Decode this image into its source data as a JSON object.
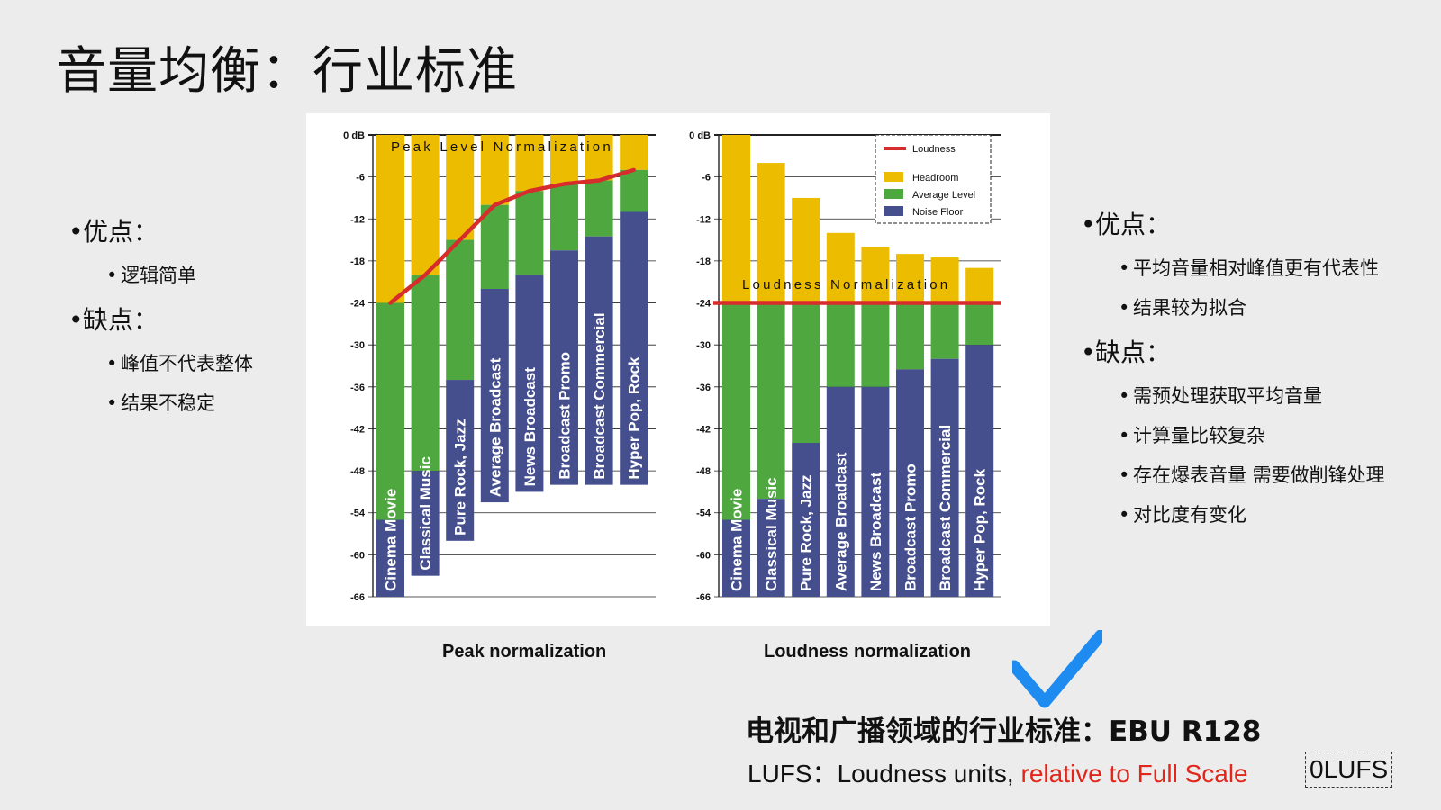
{
  "title": "音量均衡：行业标准",
  "left_bullets": {
    "pros_label": "优点：",
    "pros": [
      "逻辑简单"
    ],
    "cons_label": "缺点：",
    "cons": [
      "峰值不代表整体",
      "结果不稳定"
    ]
  },
  "right_bullets": {
    "pros_label": "优点：",
    "pros": [
      "平均音量相对峰值更有代表性",
      "结果较为拟合"
    ],
    "cons_label": "缺点：",
    "cons": [
      "需预处理获取平均音量",
      "计算量比较复杂",
      "存在爆表音量 需要做削锋处理",
      "对比度有变化"
    ]
  },
  "captions": {
    "peak": "Peak normalization",
    "loudness": "Loudness normalization"
  },
  "standard": "电视和广播领域的行业标准：EBU R128",
  "lufs": {
    "prefix": "LUFS：Loudness units, ",
    "highlight": "relative to Full Scale",
    "box": "0LUFS"
  },
  "colors": {
    "headroom": "#ecbc00",
    "average": "#4ea83f",
    "noise": "#464f8e",
    "loudness": "#d62c2c",
    "check": "#1e8bf0"
  },
  "check_icon": "checkmark-icon",
  "chart_data": [
    {
      "type": "bar",
      "title": "Peak Level Normalization",
      "ylim": [
        -66,
        0
      ],
      "yticks": [
        "0 dB",
        "-6",
        "-12",
        "-18",
        "-24",
        "-30",
        "-36",
        "-42",
        "-48",
        "-54",
        "-60",
        "-66"
      ],
      "categories": [
        "Cinema Movie",
        "Classical Music",
        "Pure Rock, Jazz",
        "Average Broadcast",
        "News Broadcast",
        "Broadcast Promo",
        "Broadcast Commercial",
        "Hyper Pop, Rock"
      ],
      "series": [
        {
          "name": "Headroom",
          "top": [
            0,
            0,
            0,
            0,
            0,
            0,
            0,
            0
          ],
          "bottom": [
            -24,
            -20,
            -15,
            -10,
            -8,
            -7,
            -6.5,
            -5
          ]
        },
        {
          "name": "Average Level",
          "top": [
            -24,
            -20,
            -15,
            -10,
            -8,
            -7,
            -6.5,
            -5
          ],
          "bottom": [
            -55,
            -48,
            -35,
            -22,
            -20,
            -16.5,
            -14.5,
            -11
          ]
        },
        {
          "name": "Noise Floor",
          "top": [
            -55,
            -48,
            -35,
            -22,
            -20,
            -16.5,
            -14.5,
            -11
          ],
          "bottom": [
            -66,
            -63,
            -58,
            -52.5,
            -51,
            -50,
            -50,
            -50
          ]
        }
      ],
      "loudness_curve": [
        -24,
        -20,
        -15,
        -10,
        -8,
        -7,
        -6.5,
        -5
      ]
    },
    {
      "type": "bar",
      "title": "Loudness Normalization",
      "ylim": [
        -66,
        0
      ],
      "yticks": [
        "0 dB",
        "-6",
        "-12",
        "-18",
        "-24",
        "-30",
        "-36",
        "-42",
        "-48",
        "-54",
        "-60",
        "-66"
      ],
      "categories": [
        "Cinema Movie",
        "Classical Music",
        "Pure Rock, Jazz",
        "Average Broadcast",
        "News Broadcast",
        "Broadcast Promo",
        "Broadcast Commercial",
        "Hyper Pop, Rock"
      ],
      "series": [
        {
          "name": "Headroom",
          "top": [
            0,
            -4,
            -9,
            -14,
            -16,
            -17,
            -17.5,
            -19
          ],
          "bottom": [
            -24,
            -24,
            -24,
            -24,
            -24,
            -24,
            -24,
            -24
          ]
        },
        {
          "name": "Average Level",
          "top": [
            -24,
            -24,
            -24,
            -24,
            -24,
            -24,
            -24,
            -24
          ],
          "bottom": [
            -55,
            -52,
            -44,
            -36,
            -36,
            -33.5,
            -32,
            -30
          ]
        },
        {
          "name": "Noise Floor",
          "top": [
            -55,
            -52,
            -44,
            -36,
            -36,
            -33.5,
            -32,
            -30
          ],
          "bottom": [
            -66,
            -66,
            -66,
            -66,
            -66,
            -66,
            -66,
            -66
          ]
        }
      ],
      "loudness_line": -24,
      "legend": {
        "placement": "top-right",
        "entries": [
          "Loudness",
          "Headroom",
          "Average Level",
          "Noise Floor"
        ]
      }
    }
  ]
}
